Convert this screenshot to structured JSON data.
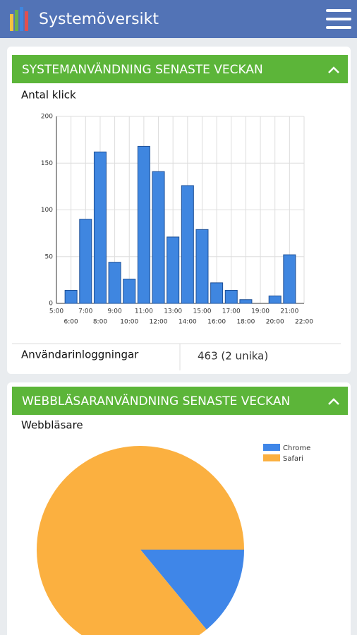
{
  "header": {
    "title": "Systemöversikt"
  },
  "panels": [
    {
      "title": "SYSTEMANVÄNDNING SENASTE VECKAN"
    },
    {
      "title": "WEBBLÄSARANVÄNDNING SENASTE VECKAN"
    }
  ],
  "logins": {
    "label": "Användarinloggningar",
    "value": "463 (2 unika)"
  },
  "chart_data": [
    {
      "type": "bar",
      "title": "Antal klick",
      "categories": [
        "5:00",
        "6:00",
        "7:00",
        "8:00",
        "9:00",
        "10:00",
        "11:00",
        "12:00",
        "13:00",
        "14:00",
        "15:00",
        "16:00",
        "17:00",
        "18:00",
        "19:00",
        "20:00",
        "21:00",
        "22:00"
      ],
      "values": [
        null,
        14,
        90,
        162,
        44,
        26,
        168,
        141,
        71,
        126,
        79,
        22,
        14,
        4,
        0,
        8,
        52,
        null
      ],
      "color": "#3f86e0",
      "ylim": [
        0,
        200
      ],
      "yticks": [
        0,
        50,
        100,
        150,
        200
      ],
      "grid": true
    },
    {
      "type": "pie",
      "title": "Webbläsare",
      "legend": "top-right",
      "categories": [
        "Chrome",
        "Safari"
      ],
      "values": [
        14,
        86
      ],
      "colors": [
        "#3f86e8",
        "#fbb040"
      ]
    }
  ]
}
